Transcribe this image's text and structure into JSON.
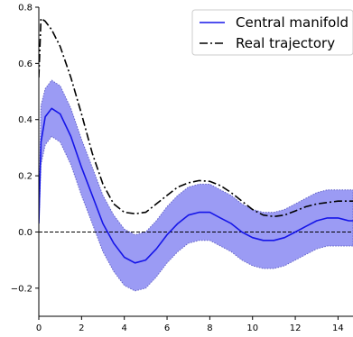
{
  "chart_data": {
    "type": "line",
    "title": "",
    "xlabel": "",
    "ylabel": "",
    "xlim": [
      0,
      14.7
    ],
    "ylim": [
      -0.3,
      0.8
    ],
    "grid": false,
    "legend_placement": "top-right",
    "xticks": [
      0,
      2,
      4,
      6,
      8,
      10,
      12,
      14
    ],
    "yticks": [
      -0.2,
      0.0,
      0.2,
      0.4,
      0.6,
      0.8
    ],
    "xtick_labels": [
      "0",
      "2",
      "4",
      "6",
      "8",
      "10",
      "12",
      "14"
    ],
    "ytick_labels": [
      "−0.2",
      "0.0",
      "0.2",
      "0.4",
      "0.6",
      "0.8"
    ],
    "reference_line": {
      "y": 0.0,
      "style": "dashed",
      "color": "#000000"
    },
    "x": [
      0.0,
      0.1,
      0.3,
      0.6,
      1.0,
      1.5,
      2.0,
      2.5,
      3.0,
      3.5,
      4.0,
      4.5,
      5.0,
      5.5,
      6.0,
      6.5,
      7.0,
      7.5,
      8.0,
      8.5,
      9.0,
      9.5,
      10.0,
      10.5,
      11.0,
      11.5,
      12.0,
      12.5,
      13.0,
      13.5,
      14.0,
      14.5,
      14.7
    ],
    "band": {
      "lower": [
        0.03,
        0.24,
        0.31,
        0.34,
        0.32,
        0.24,
        0.13,
        0.03,
        -0.07,
        -0.14,
        -0.19,
        -0.21,
        -0.2,
        -0.16,
        -0.11,
        -0.07,
        -0.04,
        -0.03,
        -0.03,
        -0.05,
        -0.07,
        -0.1,
        -0.12,
        -0.13,
        -0.13,
        -0.12,
        -0.1,
        -0.08,
        -0.06,
        -0.05,
        -0.05,
        -0.05,
        -0.05
      ],
      "upper": [
        0.03,
        0.45,
        0.51,
        0.54,
        0.52,
        0.44,
        0.33,
        0.23,
        0.13,
        0.06,
        0.01,
        -0.01,
        0.0,
        0.04,
        0.09,
        0.13,
        0.16,
        0.17,
        0.17,
        0.15,
        0.13,
        0.1,
        0.08,
        0.07,
        0.07,
        0.08,
        0.1,
        0.12,
        0.14,
        0.15,
        0.15,
        0.15,
        0.15
      ],
      "color": "#9b9bf4",
      "edge_color": "#6464c8"
    },
    "series": [
      {
        "name": "Central manifold",
        "style": "solid",
        "color": "#1515e8",
        "values": [
          0.03,
          0.32,
          0.41,
          0.44,
          0.42,
          0.34,
          0.23,
          0.13,
          0.03,
          -0.04,
          -0.09,
          -0.11,
          -0.1,
          -0.06,
          -0.01,
          0.03,
          0.06,
          0.07,
          0.07,
          0.05,
          0.03,
          0.0,
          -0.02,
          -0.03,
          -0.03,
          -0.02,
          0.0,
          0.02,
          0.04,
          0.05,
          0.05,
          0.04,
          0.04
        ]
      },
      {
        "name": "Real trajectory",
        "style": "dashdot",
        "color": "#000000",
        "values": [
          0.55,
          0.76,
          0.75,
          0.72,
          0.66,
          0.55,
          0.42,
          0.28,
          0.17,
          0.1,
          0.07,
          0.065,
          0.07,
          0.1,
          0.13,
          0.16,
          0.175,
          0.183,
          0.18,
          0.165,
          0.14,
          0.11,
          0.08,
          0.06,
          0.055,
          0.06,
          0.075,
          0.09,
          0.1,
          0.105,
          0.11,
          0.11,
          0.11
        ]
      }
    ]
  }
}
